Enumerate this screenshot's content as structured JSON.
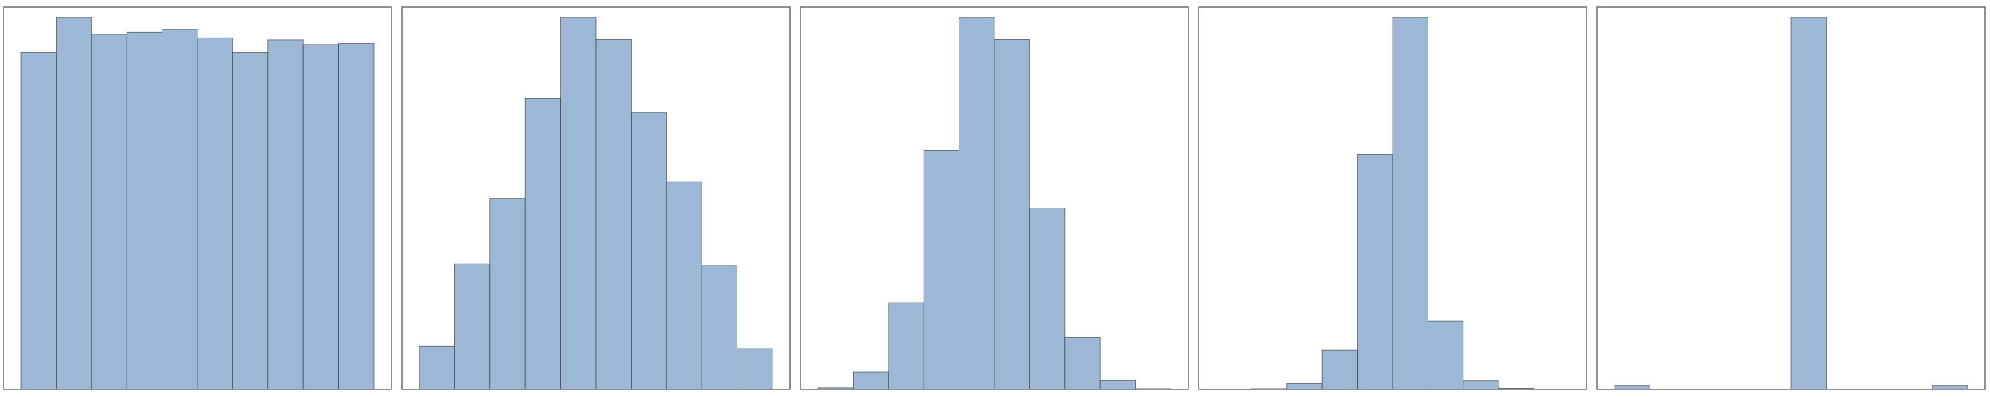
{
  "chart_data": [
    {
      "type": "bar",
      "bins": 10,
      "values": [
        0.905,
        1.0,
        0.955,
        0.96,
        0.968,
        0.945,
        0.905,
        0.94,
        0.927,
        0.93
      ],
      "ylim": [
        0,
        1.04
      ],
      "grid": false,
      "xticks": false,
      "yticks": false
    },
    {
      "type": "bar",
      "bins": 10,
      "values": [
        0.116,
        0.338,
        0.513,
        0.783,
        1.0,
        0.941,
        0.745,
        0.558,
        0.333,
        0.109
      ],
      "ylim": [
        0,
        1.04
      ],
      "grid": false,
      "xticks": false,
      "yticks": false
    },
    {
      "type": "bar",
      "bins": 10,
      "values": [
        0.004,
        0.047,
        0.233,
        0.642,
        1.0,
        0.941,
        0.488,
        0.14,
        0.024,
        0.002
      ],
      "ylim": [
        0,
        1.04
      ],
      "grid": false,
      "xticks": false,
      "yticks": false
    },
    {
      "type": "bar",
      "bins": 10,
      "values": [
        0.0,
        0.002,
        0.016,
        0.105,
        0.631,
        1.0,
        0.184,
        0.023,
        0.003,
        0.001
      ],
      "ylim": [
        0,
        1.04
      ],
      "grid": false,
      "xticks": false,
      "yticks": false
    },
    {
      "type": "bar",
      "bins": 10,
      "values": [
        0.01,
        0,
        0,
        0,
        0,
        1.0,
        0,
        0,
        0,
        0.01
      ],
      "ylim": [
        0,
        1.04
      ],
      "grid": false,
      "xticks": false,
      "yticks": false
    }
  ],
  "colors": {
    "bar_fill": "#9db8d6",
    "bar_edge": "#333333",
    "frame": "#555555",
    "background": "#ffffff"
  }
}
